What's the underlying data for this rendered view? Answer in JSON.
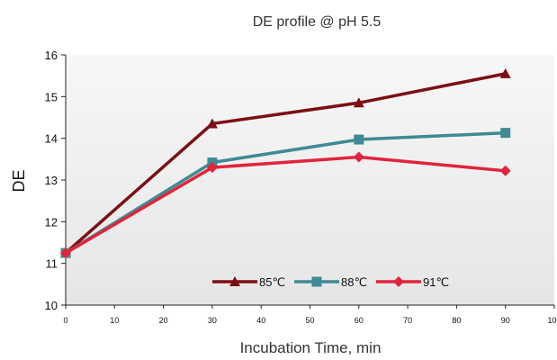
{
  "chart_data": {
    "type": "line",
    "title": "DE profile @ pH 5.5",
    "xlabel": "Incubation Time, min",
    "ylabel": "DE",
    "xlim": [
      0,
      100
    ],
    "ylim": [
      10,
      16
    ],
    "x_ticks": [
      "0",
      "10",
      "20",
      "30",
      "40",
      "50",
      "60",
      "70",
      "80",
      "90",
      "100"
    ],
    "y_ticks": [
      "10",
      "11",
      "12",
      "13",
      "14",
      "15",
      "16"
    ],
    "grid": false,
    "legend_position": "bottom-right",
    "x": [
      0,
      30,
      60,
      90
    ],
    "series": [
      {
        "name": "85℃",
        "values": [
          11.25,
          14.35,
          14.85,
          15.55
        ],
        "color": "#7a1014",
        "marker": "triangle"
      },
      {
        "name": "88℃",
        "values": [
          11.25,
          13.42,
          13.97,
          14.13
        ],
        "color": "#3f8a94",
        "marker": "square"
      },
      {
        "name": "91℃",
        "values": [
          11.25,
          13.3,
          13.55,
          13.22
        ],
        "color": "#e0243c",
        "marker": "diamond"
      }
    ],
    "plot_background": "#efefef"
  }
}
